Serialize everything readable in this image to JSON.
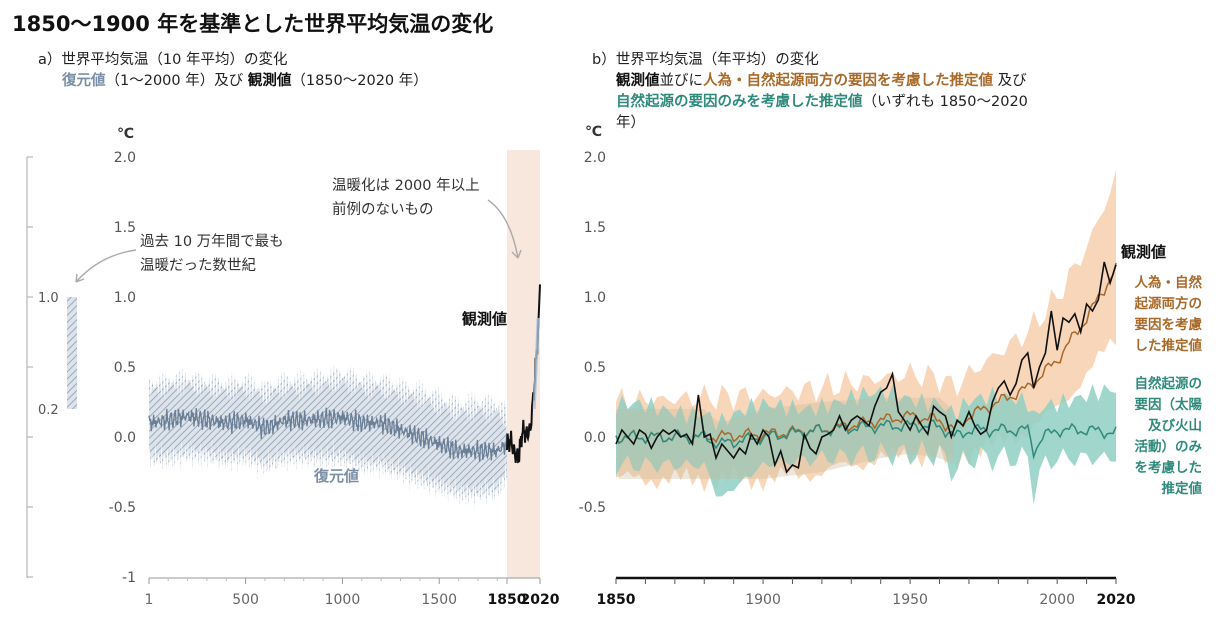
{
  "title": "1850〜1900 年を基準とした世界平均気温の変化",
  "panel_a": {
    "label": "a）",
    "heading": "世界平均気温（10 年平均）の変化",
    "line2_recon": "復元値",
    "line2_mid": "（1〜2000 年）及び",
    "line2_obs": "観測値",
    "line2_end": "（1850〜2020 年）",
    "unit": "℃",
    "y_ticks": [
      "2.0",
      "1.5",
      "1.0",
      "0.5",
      "0.0",
      "-0.5",
      "-1"
    ],
    "x_ticks": [
      "1",
      "500",
      "1000",
      "1500",
      "1850",
      "2020"
    ],
    "bracket_labels": [
      "1.0",
      "0.2"
    ],
    "annotation_past": [
      "過去 10 万年間で最も",
      "温暖だった数世紀"
    ],
    "annotation_warming": [
      "温暖化は 2000 年以上",
      "前例のないもの"
    ],
    "label_obs": "観測値",
    "label_recon": "復元値"
  },
  "panel_b": {
    "label": "b）",
    "heading": "世界平均気温（年平均）の変化",
    "line2_obs": "観測値",
    "line2_and": "並びに",
    "line2_human": "人為・自然起源両方の要因を考慮した推定値",
    "line2_end": " 及び",
    "line3_natural": "自然起源の要因のみを考慮した推定値",
    "line3_end": "（いずれも 1850〜2020",
    "line4": "年）",
    "unit": "℃",
    "y_ticks": [
      "2.0",
      "1.5",
      "1.0",
      "0.5",
      "0.0",
      "-0.5"
    ],
    "x_ticks": [
      "1850",
      "1900",
      "1950",
      "2000",
      "2020"
    ],
    "label_obs": "観測値",
    "label_human": [
      "人為・自然",
      "起源両方の",
      "要因を考慮",
      "した推定値"
    ],
    "label_natural": [
      "自然起源の",
      "要因（太陽",
      "及び火山",
      "活動）のみ",
      "を考慮した",
      "推定値"
    ]
  },
  "colors": {
    "recon": "#7b8fa6",
    "recon_band": "#a9b6c6",
    "observed": "#111111",
    "human": "#a8692a",
    "human_band": "#f6cfad",
    "natural": "#2f8a7c",
    "natural_band": "#8fcfc3",
    "highlight": "#f7e7dc"
  },
  "chart_data": [
    {
      "type": "line",
      "title": "世界平均気温（10 年平均）の変化",
      "ylabel": "℃",
      "xlim": [
        1,
        2020
      ],
      "ylim": [
        -1,
        2
      ],
      "series": [
        {
          "name": "復元値",
          "x": [
            1,
            100,
            200,
            300,
            400,
            500,
            600,
            700,
            800,
            900,
            1000,
            1100,
            1200,
            1300,
            1400,
            1500,
            1600,
            1700,
            1800,
            1850
          ],
          "y": [
            0.1,
            0.12,
            0.15,
            0.12,
            0.1,
            0.12,
            0.06,
            0.12,
            0.12,
            0.13,
            0.14,
            0.1,
            0.1,
            0.05,
            0.0,
            -0.05,
            -0.1,
            -0.1,
            -0.1,
            -0.05
          ],
          "lower": [
            -0.15,
            -0.15,
            -0.12,
            -0.13,
            -0.16,
            -0.14,
            -0.2,
            -0.15,
            -0.14,
            -0.15,
            -0.15,
            -0.2,
            -0.2,
            -0.25,
            -0.3,
            -0.35,
            -0.4,
            -0.4,
            -0.38,
            -0.25
          ],
          "upper": [
            0.35,
            0.38,
            0.4,
            0.37,
            0.35,
            0.37,
            0.32,
            0.37,
            0.38,
            0.4,
            0.42,
            0.38,
            0.37,
            0.33,
            0.3,
            0.25,
            0.2,
            0.22,
            0.2,
            0.15
          ]
        },
        {
          "name": "観測値",
          "x": [
            1850,
            1870,
            1890,
            1910,
            1930,
            1950,
            1970,
            1980,
            1990,
            2000,
            2010,
            2020
          ],
          "y": [
            -0.05,
            -0.02,
            -0.12,
            -0.15,
            0.05,
            0.02,
            0.05,
            0.2,
            0.35,
            0.55,
            0.75,
            1.09
          ]
        }
      ],
      "bracket": [
        0.2,
        1.0
      ]
    },
    {
      "type": "line",
      "title": "世界平均気温（年平均）の変化",
      "ylabel": "℃",
      "xlim": [
        1850,
        2020
      ],
      "ylim": [
        -1,
        2
      ],
      "series": [
        {
          "name": "観測値",
          "x": [
            1850,
            1852,
            1854,
            1856,
            1858,
            1860,
            1862,
            1864,
            1866,
            1868,
            1870,
            1872,
            1874,
            1876,
            1878,
            1880,
            1882,
            1884,
            1886,
            1888,
            1890,
            1892,
            1894,
            1896,
            1898,
            1900,
            1902,
            1904,
            1906,
            1908,
            1910,
            1912,
            1914,
            1916,
            1918,
            1920,
            1922,
            1924,
            1926,
            1928,
            1930,
            1932,
            1934,
            1936,
            1938,
            1940,
            1942,
            1944,
            1946,
            1948,
            1950,
            1952,
            1954,
            1956,
            1958,
            1960,
            1962,
            1964,
            1966,
            1968,
            1970,
            1972,
            1974,
            1976,
            1978,
            1980,
            1982,
            1984,
            1986,
            1988,
            1990,
            1992,
            1994,
            1996,
            1998,
            2000,
            2002,
            2004,
            2006,
            2008,
            2010,
            2012,
            2014,
            2016,
            2018,
            2020
          ],
          "y": [
            -0.05,
            0.05,
            0.0,
            -0.05,
            0.05,
            0.02,
            -0.08,
            0.0,
            0.05,
            0.02,
            0.05,
            0.0,
            0.02,
            -0.05,
            0.3,
            0.0,
            0.02,
            -0.15,
            -0.05,
            -0.1,
            -0.15,
            -0.08,
            -0.12,
            0.02,
            -0.05,
            0.05,
            0.0,
            -0.2,
            -0.1,
            -0.25,
            -0.2,
            -0.22,
            0.02,
            -0.08,
            -0.12,
            0.0,
            0.02,
            0.05,
            0.15,
            0.05,
            0.12,
            0.15,
            0.12,
            0.08,
            0.22,
            0.32,
            0.35,
            0.45,
            0.18,
            0.12,
            0.05,
            0.15,
            0.08,
            0.02,
            0.22,
            0.18,
            0.15,
            0.0,
            0.12,
            0.08,
            0.18,
            0.08,
            0.02,
            0.05,
            0.25,
            0.35,
            0.4,
            0.3,
            0.38,
            0.55,
            0.6,
            0.35,
            0.5,
            0.6,
            0.9,
            0.62,
            0.85,
            0.82,
            0.88,
            0.75,
            0.95,
            0.9,
            0.98,
            1.25,
            1.1,
            1.23
          ]
        },
        {
          "name": "人為・自然起源両方の要因を考慮した推定値",
          "x": [
            1850,
            1880,
            1900,
            1920,
            1940,
            1950,
            1960,
            1965,
            1970,
            1980,
            1990,
            2000,
            2010,
            2020
          ],
          "y": [
            0.0,
            0.0,
            0.02,
            0.05,
            0.12,
            0.15,
            0.12,
            0.05,
            0.15,
            0.25,
            0.35,
            0.55,
            0.85,
            1.2
          ],
          "lower": [
            -0.3,
            -0.3,
            -0.3,
            -0.25,
            -0.15,
            -0.12,
            -0.15,
            -0.2,
            -0.1,
            -0.05,
            0.05,
            0.2,
            0.45,
            0.7
          ],
          "upper": [
            0.25,
            0.28,
            0.3,
            0.35,
            0.42,
            0.45,
            0.42,
            0.35,
            0.45,
            0.6,
            0.75,
            1.0,
            1.35,
            1.85
          ]
        },
        {
          "name": "自然起源の要因のみを考慮した推定値",
          "x": [
            1850,
            1880,
            1885,
            1900,
            1920,
            1940,
            1960,
            1965,
            1970,
            1980,
            1990,
            1992,
            1995,
            2000,
            2010,
            2020
          ],
          "y": [
            0.0,
            0.0,
            -0.05,
            0.0,
            0.05,
            0.08,
            0.08,
            0.0,
            0.05,
            0.05,
            0.05,
            -0.1,
            0.0,
            0.05,
            0.05,
            0.03
          ],
          "lower": [
            -0.2,
            -0.2,
            -0.45,
            -0.2,
            -0.15,
            -0.12,
            -0.12,
            -0.25,
            -0.15,
            -0.15,
            -0.15,
            -0.4,
            -0.2,
            -0.15,
            -0.15,
            -0.15
          ],
          "upper": [
            0.2,
            0.2,
            0.1,
            0.2,
            0.25,
            0.28,
            0.28,
            0.18,
            0.25,
            0.25,
            0.25,
            0.15,
            0.25,
            0.28,
            0.3,
            0.3
          ]
        }
      ]
    }
  ]
}
